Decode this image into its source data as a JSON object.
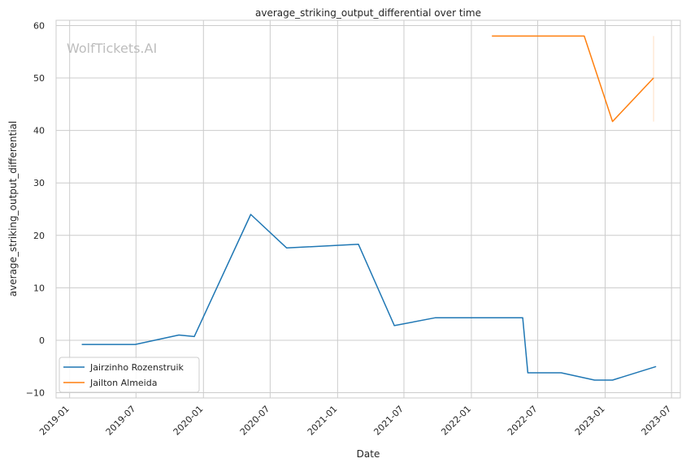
{
  "chart_data": {
    "type": "line",
    "title": "average_striking_output_differential over time",
    "xlabel": "Date",
    "ylabel": "average_striking_output_differential",
    "watermark": "WolfTickets.AI",
    "xlim": [
      "2018-11-25",
      "2023-07-25"
    ],
    "ylim": [
      -11,
      61
    ],
    "x_ticks": [
      "2019-01-01",
      "2019-07-01",
      "2020-01-01",
      "2020-07-01",
      "2021-01-01",
      "2021-07-01",
      "2022-01-01",
      "2022-07-01",
      "2023-01-01",
      "2023-07-01"
    ],
    "x_tick_labels": [
      "2019-01",
      "2019-07",
      "2020-01",
      "2020-07",
      "2021-01",
      "2021-07",
      "2022-01",
      "2022-07",
      "2023-01",
      "2023-07"
    ],
    "y_ticks": [
      -10,
      0,
      10,
      20,
      30,
      40,
      50,
      60
    ],
    "y_tick_labels": [
      "−10",
      "0",
      "10",
      "20",
      "30",
      "40",
      "50",
      "60"
    ],
    "grid": true,
    "legend_position": "lower-left",
    "series": [
      {
        "name": "Jairzinho Rozenstruik",
        "color": "#1f77b4",
        "points": [
          [
            "2019-02-03",
            -0.8
          ],
          [
            "2019-06-29",
            -0.8
          ],
          [
            "2019-10-26",
            1.0
          ],
          [
            "2019-12-07",
            0.7
          ],
          [
            "2020-05-09",
            24.0
          ],
          [
            "2020-08-15",
            17.6
          ],
          [
            "2021-02-27",
            18.3
          ],
          [
            "2021-06-05",
            2.8
          ],
          [
            "2021-09-25",
            4.3
          ],
          [
            "2022-05-21",
            4.3
          ],
          [
            "2022-06-04",
            -6.2
          ],
          [
            "2022-09-03",
            -6.2
          ],
          [
            "2022-12-03",
            -7.6
          ],
          [
            "2023-01-21",
            -7.6
          ],
          [
            "2023-05-20",
            -5.0
          ]
        ]
      },
      {
        "name": "Jailton Almeida",
        "color": "#ff7f0e",
        "points": [
          [
            "2022-02-26",
            58.0
          ],
          [
            "2022-11-05",
            58.0
          ],
          [
            "2023-01-21",
            41.7
          ],
          [
            "2023-05-13",
            50.0
          ]
        ],
        "band": {
          "x": "2023-05-13",
          "low": 41.7,
          "high": 58.0
        }
      }
    ]
  }
}
